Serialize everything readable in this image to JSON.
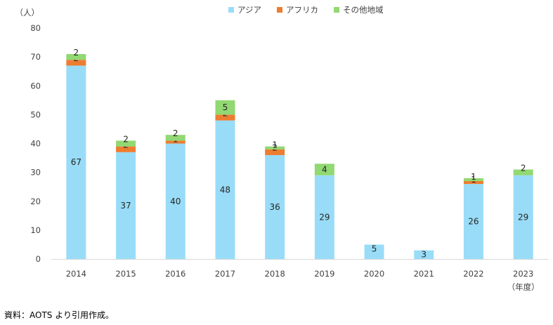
{
  "chart_data": {
    "type": "bar",
    "stacked": true,
    "title": "",
    "xlabel": "",
    "ylabel": "（人）",
    "x_unit_label": "（年度）",
    "ylim": [
      0,
      80
    ],
    "yticks": [
      "0",
      "10",
      "20",
      "30",
      "40",
      "50",
      "60",
      "70",
      "80"
    ],
    "categories": [
      "2014",
      "2015",
      "2016",
      "2017",
      "2018",
      "2019",
      "2020",
      "2021",
      "2022",
      "2023"
    ],
    "series": [
      {
        "name": "アジア",
        "color": "#99dcf8",
        "values": [
          67,
          37,
          40,
          48,
          36,
          29,
          5,
          3,
          26,
          29
        ],
        "labels": [
          "67",
          "37",
          "40",
          "48",
          "36",
          "29",
          "5",
          "3",
          "26",
          "29"
        ]
      },
      {
        "name": "アフリカ",
        "color": "#ed7d31",
        "values": [
          2,
          2,
          1,
          2,
          2,
          0,
          0,
          0,
          1,
          0
        ],
        "labels": [
          "2",
          "2",
          "1",
          "2",
          "2",
          "",
          "",
          "",
          "1",
          ""
        ]
      },
      {
        "name": "その他地域",
        "color": "#92d873",
        "values": [
          2,
          2,
          2,
          5,
          1,
          4,
          0,
          0,
          1,
          2
        ],
        "labels": [
          "2",
          "2",
          "2",
          "5",
          "1",
          "4",
          "",
          "",
          "1",
          "2"
        ]
      }
    ],
    "grid": false,
    "legend_position": "top-center"
  },
  "source_note": "資料：AOTS より引用作成。"
}
